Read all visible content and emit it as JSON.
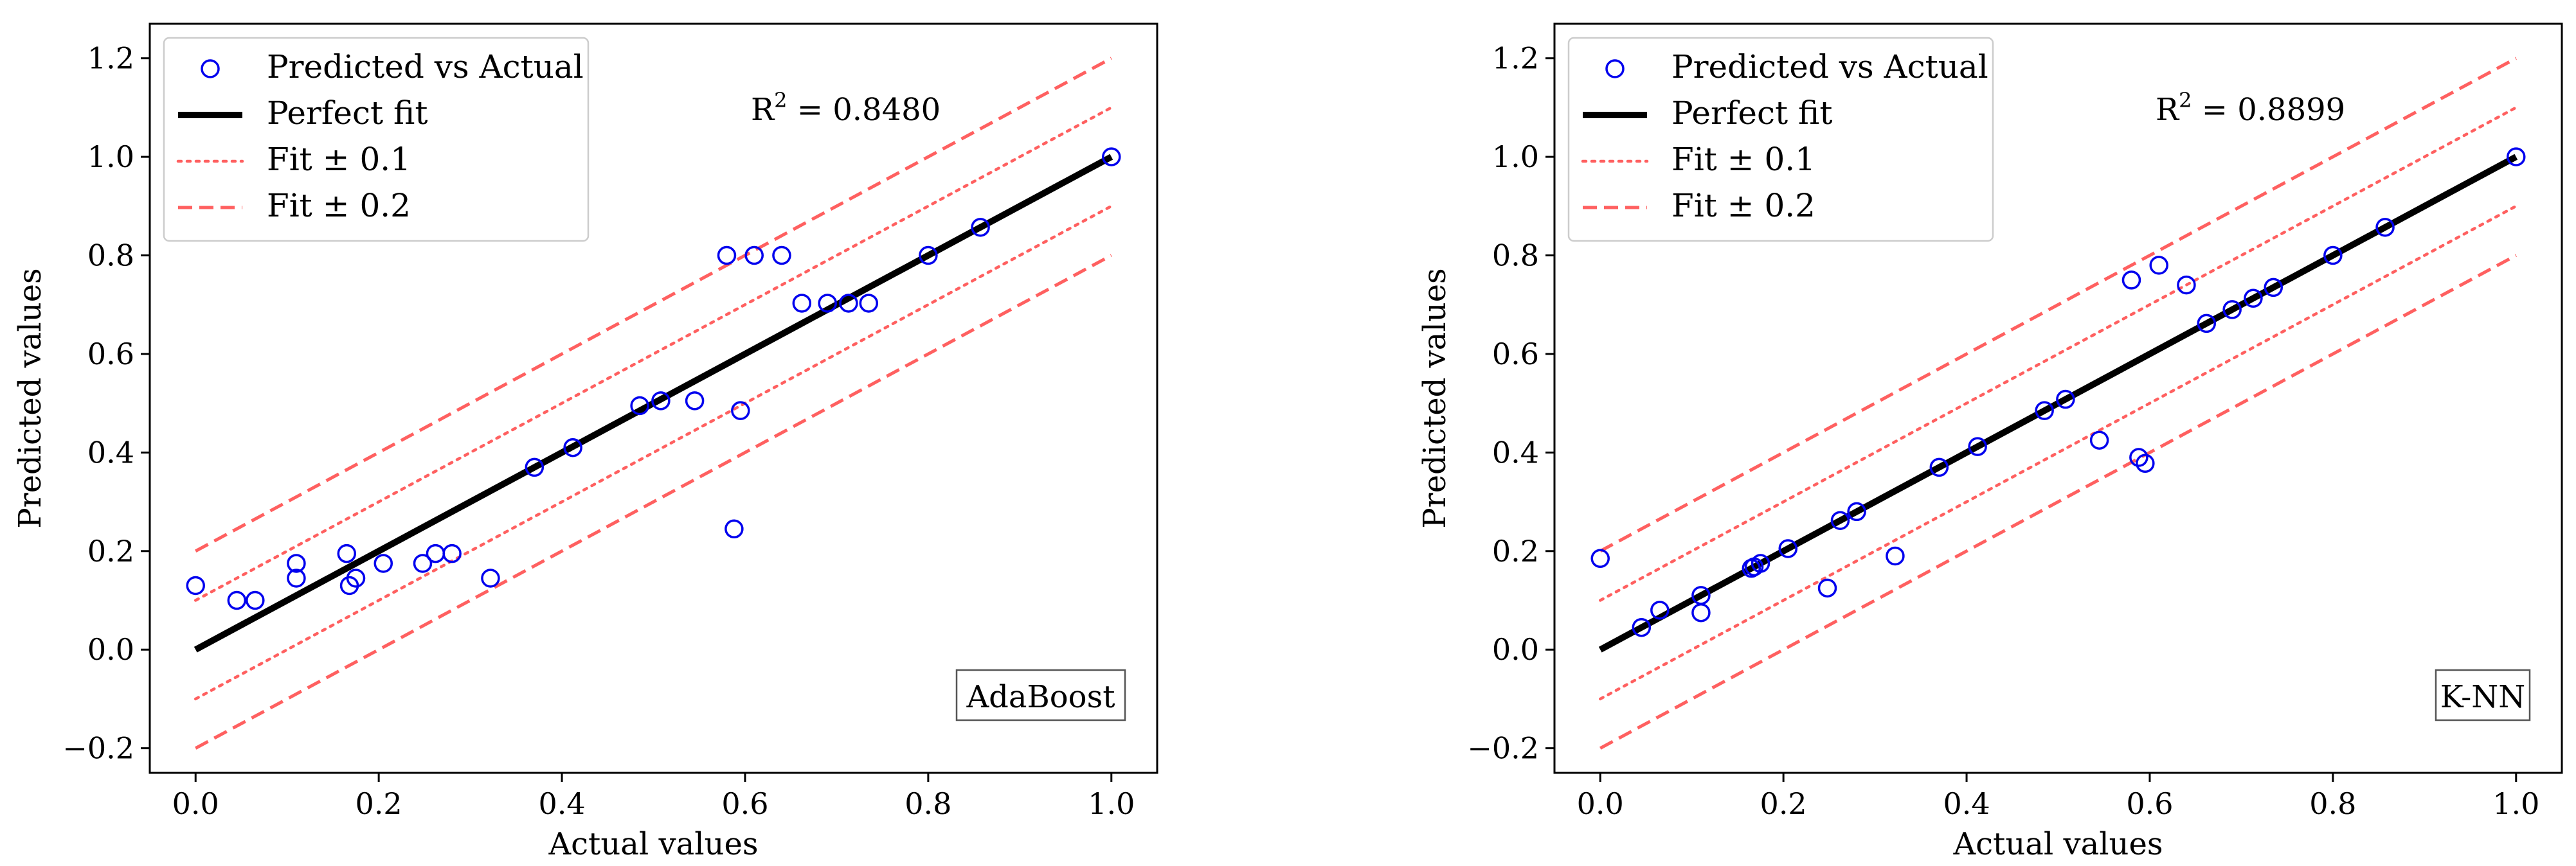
{
  "chart_data": [
    {
      "type": "scatter",
      "panel": "left",
      "model_label": "AdaBoost",
      "r2_prefix": "R",
      "r2_exponent": "2",
      "r2_suffix": " = 0.8480",
      "xlabel": "Actual values",
      "ylabel": "Predicted values",
      "xlim": [
        -0.05,
        1.05
      ],
      "ylim": [
        -0.25,
        1.27
      ],
      "xticks": [
        0.0,
        0.2,
        0.4,
        0.6,
        0.8,
        1.0
      ],
      "xtick_labels": [
        "0.0",
        "0.2",
        "0.4",
        "0.6",
        "0.8",
        "1.0"
      ],
      "yticks": [
        -0.2,
        0.0,
        0.2,
        0.4,
        0.6,
        0.8,
        1.0,
        1.2
      ],
      "ytick_labels": [
        "−0.2",
        "0.0",
        "0.2",
        "0.4",
        "0.6",
        "0.8",
        "1.0",
        "1.2"
      ],
      "legend": {
        "placement": "upper-left",
        "entries": [
          "Predicted vs Actual",
          "Perfect fit",
          "Fit ± 0.1",
          "Fit ± 0.2"
        ]
      },
      "reference_lines": [
        {
          "name": "Perfect fit",
          "offset": 0.0,
          "style": "solid",
          "color": "#000000"
        },
        {
          "name": "Fit + 0.1",
          "offset": 0.1,
          "style": "dotted",
          "color": "#ff6060"
        },
        {
          "name": "Fit - 0.1",
          "offset": -0.1,
          "style": "dotted",
          "color": "#ff6060"
        },
        {
          "name": "Fit + 0.2",
          "offset": 0.2,
          "style": "dashed",
          "color": "#ff6060"
        },
        {
          "name": "Fit - 0.2",
          "offset": -0.2,
          "style": "dashed",
          "color": "#ff6060"
        }
      ],
      "marker_color": "#0000ee",
      "points": [
        [
          0.0,
          0.13
        ],
        [
          0.045,
          0.1
        ],
        [
          0.065,
          0.1
        ],
        [
          0.11,
          0.175
        ],
        [
          0.11,
          0.145
        ],
        [
          0.165,
          0.195
        ],
        [
          0.168,
          0.13
        ],
        [
          0.175,
          0.145
        ],
        [
          0.205,
          0.175
        ],
        [
          0.248,
          0.175
        ],
        [
          0.262,
          0.195
        ],
        [
          0.28,
          0.195
        ],
        [
          0.322,
          0.145
        ],
        [
          0.37,
          0.37
        ],
        [
          0.412,
          0.41
        ],
        [
          0.485,
          0.495
        ],
        [
          0.508,
          0.505
        ],
        [
          0.545,
          0.505
        ],
        [
          0.58,
          0.8
        ],
        [
          0.588,
          0.245
        ],
        [
          0.595,
          0.485
        ],
        [
          0.61,
          0.8
        ],
        [
          0.64,
          0.8
        ],
        [
          0.662,
          0.703
        ],
        [
          0.69,
          0.703
        ],
        [
          0.713,
          0.703
        ],
        [
          0.735,
          0.703
        ],
        [
          0.8,
          0.8
        ],
        [
          0.857,
          0.857
        ],
        [
          1.0,
          1.0
        ]
      ]
    },
    {
      "type": "scatter",
      "panel": "right",
      "model_label": "K-NN",
      "r2_prefix": "R",
      "r2_exponent": "2",
      "r2_suffix": " = 0.8899",
      "xlabel": "Actual values",
      "ylabel": "Predicted values",
      "xlim": [
        -0.05,
        1.05
      ],
      "ylim": [
        -0.25,
        1.27
      ],
      "xticks": [
        0.0,
        0.2,
        0.4,
        0.6,
        0.8,
        1.0
      ],
      "xtick_labels": [
        "0.0",
        "0.2",
        "0.4",
        "0.6",
        "0.8",
        "1.0"
      ],
      "yticks": [
        -0.2,
        0.0,
        0.2,
        0.4,
        0.6,
        0.8,
        1.0,
        1.2
      ],
      "ytick_labels": [
        "−0.2",
        "0.0",
        "0.2",
        "0.4",
        "0.6",
        "0.8",
        "1.0",
        "1.2"
      ],
      "legend": {
        "placement": "upper-left",
        "entries": [
          "Predicted vs Actual",
          "Perfect fit",
          "Fit ± 0.1",
          "Fit ± 0.2"
        ]
      },
      "reference_lines": [
        {
          "name": "Perfect fit",
          "offset": 0.0,
          "style": "solid",
          "color": "#000000"
        },
        {
          "name": "Fit + 0.1",
          "offset": 0.1,
          "style": "dotted",
          "color": "#ff6060"
        },
        {
          "name": "Fit - 0.1",
          "offset": -0.1,
          "style": "dotted",
          "color": "#ff6060"
        },
        {
          "name": "Fit + 0.2",
          "offset": 0.2,
          "style": "dashed",
          "color": "#ff6060"
        },
        {
          "name": "Fit - 0.2",
          "offset": -0.2,
          "style": "dashed",
          "color": "#ff6060"
        }
      ],
      "marker_color": "#0000ee",
      "points": [
        [
          0.0,
          0.185
        ],
        [
          0.045,
          0.045
        ],
        [
          0.065,
          0.08
        ],
        [
          0.11,
          0.11
        ],
        [
          0.11,
          0.075
        ],
        [
          0.165,
          0.165
        ],
        [
          0.168,
          0.168
        ],
        [
          0.175,
          0.175
        ],
        [
          0.205,
          0.205
        ],
        [
          0.248,
          0.125
        ],
        [
          0.262,
          0.262
        ],
        [
          0.28,
          0.28
        ],
        [
          0.322,
          0.19
        ],
        [
          0.37,
          0.37
        ],
        [
          0.412,
          0.412
        ],
        [
          0.485,
          0.485
        ],
        [
          0.508,
          0.508
        ],
        [
          0.545,
          0.425
        ],
        [
          0.58,
          0.75
        ],
        [
          0.588,
          0.39
        ],
        [
          0.595,
          0.378
        ],
        [
          0.61,
          0.78
        ],
        [
          0.64,
          0.74
        ],
        [
          0.662,
          0.662
        ],
        [
          0.69,
          0.69
        ],
        [
          0.713,
          0.713
        ],
        [
          0.735,
          0.735
        ],
        [
          0.8,
          0.8
        ],
        [
          0.857,
          0.857
        ],
        [
          1.0,
          1.0
        ]
      ]
    }
  ]
}
